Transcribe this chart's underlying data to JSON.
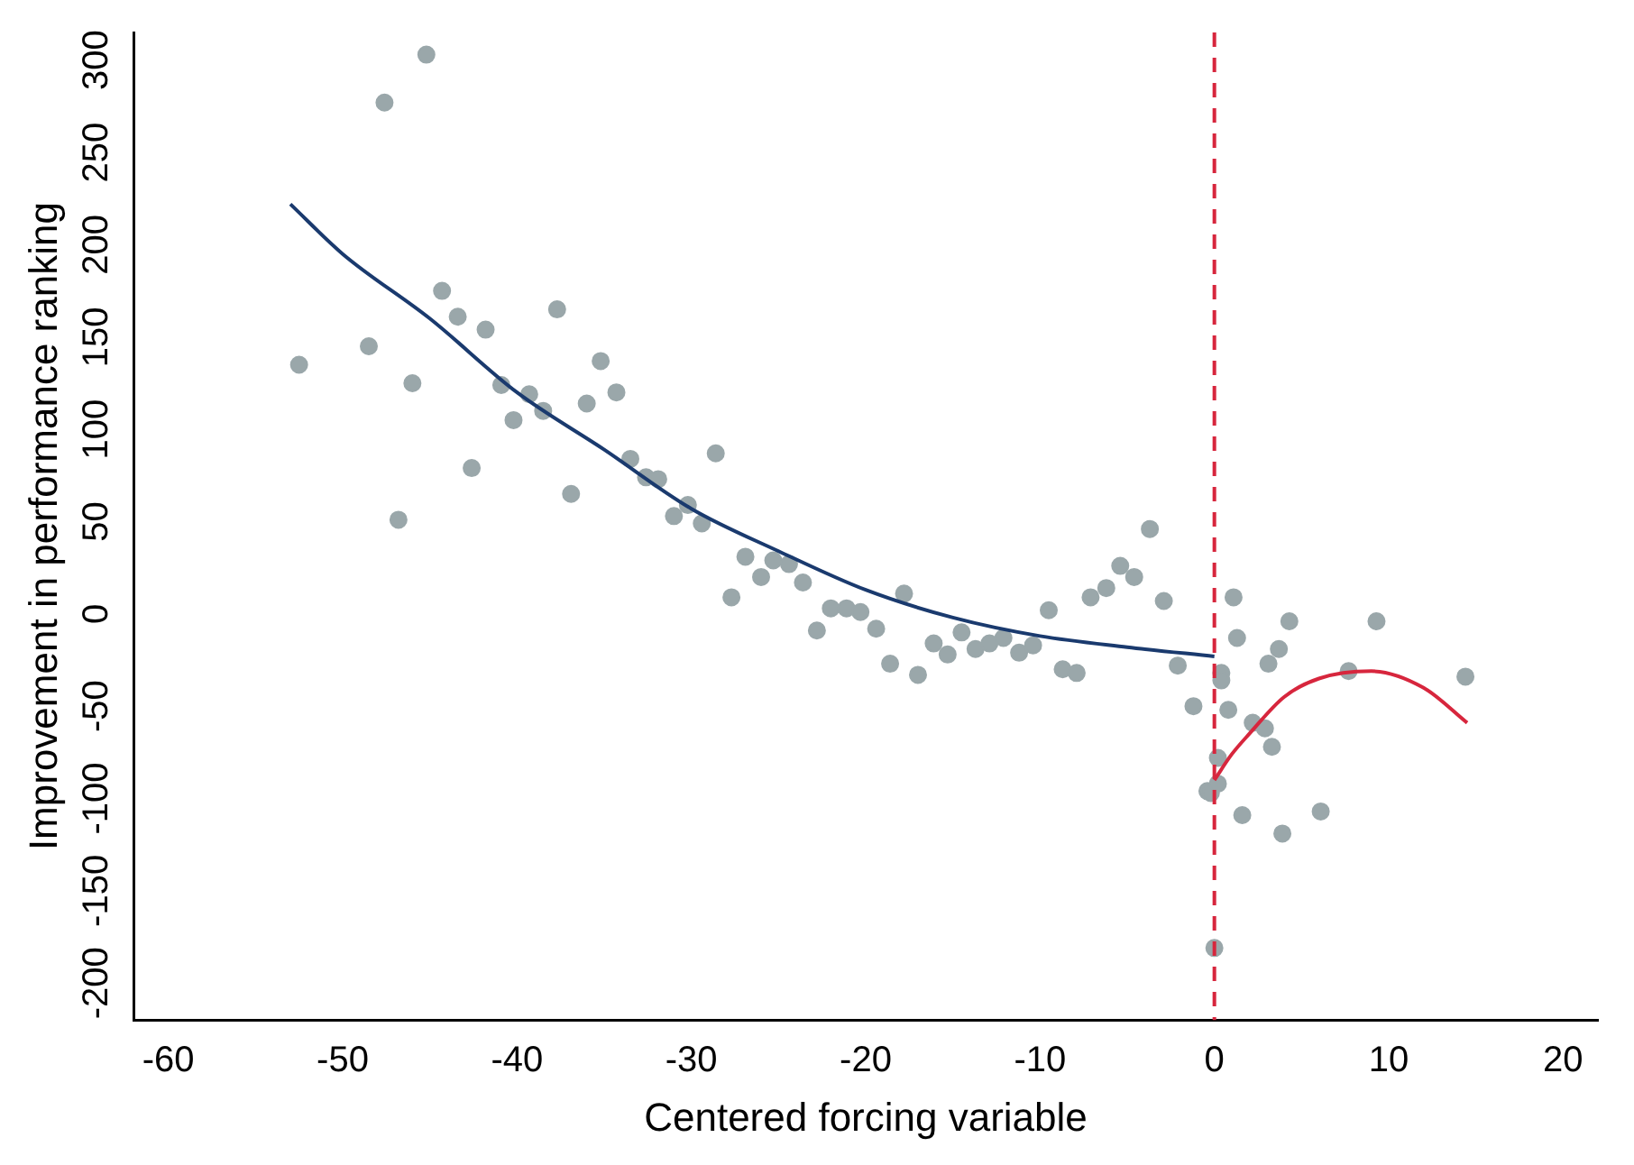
{
  "chart_data": {
    "type": "scatter",
    "xlabel": "Centered forcing variable",
    "ylabel": "Improvement in performance ranking",
    "xlim": [
      -62,
      22
    ],
    "xticks": [
      -60,
      -50,
      -40,
      -30,
      -20,
      -10,
      0,
      10,
      20
    ],
    "ylim": [
      -220,
      315
    ],
    "yticks": [
      -200,
      -150,
      -100,
      -50,
      0,
      50,
      100,
      150,
      200,
      250,
      300
    ],
    "grid": false,
    "legend": false,
    "marker": "circle",
    "series": [
      {
        "color": "#9aa7aa",
        "x": [
          -52.5,
          -48.5,
          -47.6,
          -46.8,
          -46,
          -45.2,
          -44.3,
          -43.4,
          -42.6,
          -41.8,
          -40.9,
          -40.2,
          -39.3,
          -38.5,
          -37.7,
          -36.9,
          -36,
          -35.2,
          -34.3,
          -33.5,
          -32.6,
          -31.9,
          -31,
          -30.2,
          -29.4,
          -28.6,
          -27.7,
          -26.9,
          -26,
          -25.3,
          -24.4,
          -23.6,
          -22.8,
          -22,
          -21.1,
          -20.3,
          -19.4,
          -18.6,
          -17.8,
          -17,
          -16.1,
          -15.3,
          -14.5,
          -13.7,
          -12.9,
          -12.1,
          -11.2,
          -10.4,
          -9.5,
          -8.7,
          -7.9,
          -7.1,
          -6.2,
          -5.4,
          -4.6,
          -3.7,
          -2.9,
          -2.1,
          -1.2,
          -0.4,
          -0.2,
          0.2,
          0.2,
          0.4,
          0.4,
          0,
          1.1,
          1.3,
          0.8,
          1.6,
          2.2,
          2.9,
          3.3,
          3.1,
          3.7,
          3.9,
          4.3,
          6.1,
          7.7,
          9.3,
          14.4
        ],
        "values": [
          135,
          145,
          277,
          51,
          125,
          303,
          175,
          161,
          79,
          154,
          124,
          105,
          119,
          110,
          165,
          65,
          114,
          137,
          120,
          84,
          74,
          73,
          53,
          59,
          49,
          87,
          9,
          31,
          20,
          29,
          27,
          17,
          -9,
          3,
          3,
          1,
          -8,
          -27,
          11,
          -33,
          -16,
          -22,
          -10,
          -19,
          -16,
          -13,
          -21,
          -17,
          2,
          -30,
          -32,
          9,
          14,
          26,
          20,
          46,
          7,
          -28,
          -50,
          -96,
          -97,
          -92,
          -78,
          -32,
          -36,
          -181,
          9,
          -13,
          -52,
          -109,
          -59,
          -62,
          -72,
          -27,
          -19,
          -119,
          -4,
          -107,
          -31,
          -4,
          -34
        ]
      },
      {
        "type": "line",
        "color": "#1a3a6e",
        "marker": "none",
        "x": [
          -53,
          -50,
          -45,
          -40,
          -35,
          -30,
          -25,
          -20,
          -15,
          -10,
          -5,
          0
        ],
        "values": [
          222,
          195,
          160,
          120,
          89,
          57,
          34,
          13,
          -2,
          -12,
          -18,
          -23
        ]
      },
      {
        "type": "line",
        "color": "#d7263d",
        "marker": "none",
        "x": [
          0,
          1,
          2,
          4,
          6,
          9,
          12,
          14.5
        ],
        "values": [
          -90,
          -76,
          -65,
          -45,
          -35,
          -31,
          -40,
          -59
        ]
      }
    ],
    "ref_lines": [
      {
        "axis": "x",
        "value": 0,
        "color": "#d7263d",
        "line_style": "dashed"
      }
    ]
  }
}
